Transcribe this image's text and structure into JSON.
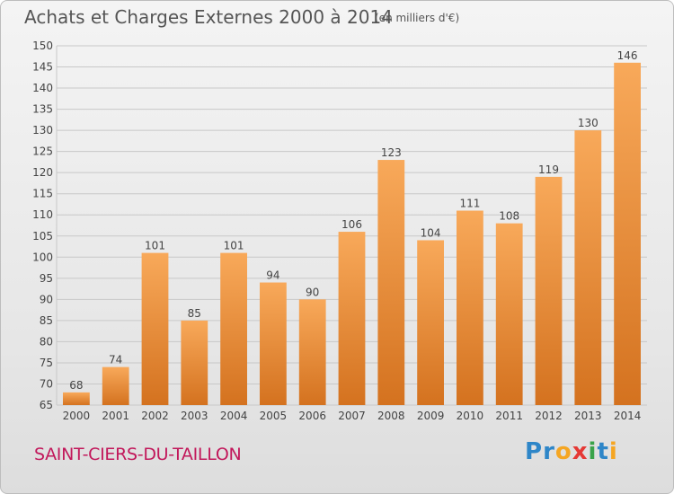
{
  "title": "Achats et Charges Externes 2000 à 2014",
  "subtitle": "(en milliers d'€)",
  "location": "SAINT-CIERS-DU-TAILLON",
  "logo": {
    "letters": [
      "P",
      "r",
      "o",
      "x",
      "i",
      "t",
      "i"
    ],
    "colors": [
      "#2e86c8",
      "#2e86c8",
      "#f5a623",
      "#e53935",
      "#3aa34a",
      "#2e86c8",
      "#f5a623"
    ]
  },
  "colors": {
    "bar_light": "#f8a95a",
    "bar_dark": "#d4721f",
    "grid": "#c8c8c8",
    "axis_text": "#444444",
    "location": "#c2185b"
  },
  "chart_data": {
    "type": "bar",
    "categories": [
      "2000",
      "2001",
      "2002",
      "2003",
      "2004",
      "2005",
      "2006",
      "2007",
      "2008",
      "2009",
      "2010",
      "2011",
      "2012",
      "2013",
      "2014"
    ],
    "values": [
      68,
      74,
      101,
      85,
      101,
      94,
      90,
      106,
      123,
      104,
      111,
      108,
      119,
      130,
      146
    ],
    "ylim": [
      65,
      150
    ],
    "yticks": [
      65,
      70,
      75,
      80,
      85,
      90,
      95,
      100,
      105,
      110,
      115,
      120,
      125,
      130,
      135,
      140,
      145,
      150
    ],
    "grid": true,
    "data_labels": true
  }
}
